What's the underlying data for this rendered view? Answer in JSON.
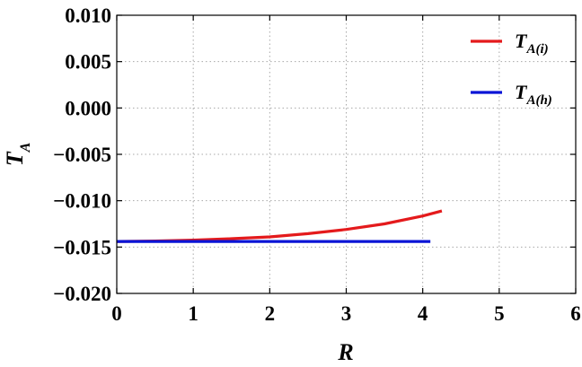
{
  "chart_data": {
    "type": "line",
    "xlabel": "R",
    "ylabel": {
      "main": "T",
      "sub": "A"
    },
    "xlim": [
      0,
      6
    ],
    "ylim": [
      -0.02,
      0.01
    ],
    "xticks": [
      0,
      1,
      2,
      3,
      4,
      5,
      6
    ],
    "yticks": [
      0.01,
      0.005,
      0.0,
      -0.005,
      -0.01,
      -0.015,
      -0.02
    ],
    "xtick_labels": [
      "0",
      "1",
      "2",
      "3",
      "4",
      "5",
      "6"
    ],
    "ytick_labels": [
      "0.010",
      "0.005",
      "0.000",
      "−0.005",
      "−0.010",
      "−0.015",
      "−0.020"
    ],
    "grid": true,
    "legend_position": "top-right",
    "series": [
      {
        "name": {
          "main": "T",
          "sub": "A(i)"
        },
        "color": "#e41a1c",
        "x": [
          0,
          0.5,
          1,
          1.5,
          2,
          2.5,
          3,
          3.5,
          4,
          4.25
        ],
        "y": [
          -0.0144,
          -0.01435,
          -0.01425,
          -0.0141,
          -0.0139,
          -0.01355,
          -0.0131,
          -0.0125,
          -0.01165,
          -0.0111
        ]
      },
      {
        "name": {
          "main": "T",
          "sub": "A(h)"
        },
        "color": "#0a14d6",
        "x": [
          0,
          4.1
        ],
        "y": [
          -0.0144,
          -0.0144
        ]
      }
    ]
  }
}
